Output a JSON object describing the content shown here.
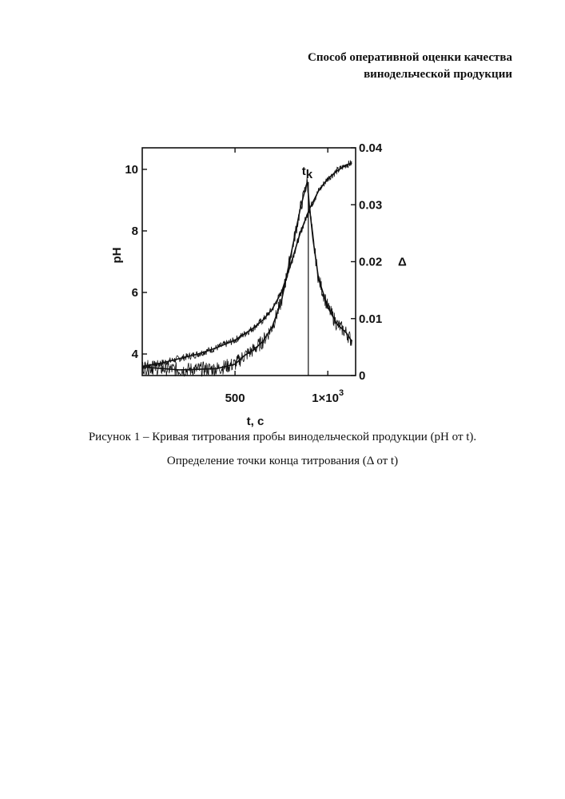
{
  "document": {
    "title_lines": [
      "Способ оперативной оценки качества",
      "винодельческой продукции"
    ],
    "caption_line1": "Рисунок 1 – Кривая титрования пробы винодельческой продукции (pH от t).",
    "caption_line2": "Определение точки конца титрования (Δ от t)"
  },
  "chart_data": {
    "type": "line",
    "xlabel": "t, c",
    "ylabel_left": "pH",
    "ylabel_right": "Δ",
    "xlim": [
      0,
      1150
    ],
    "ylim_left": [
      3.3,
      10.7
    ],
    "ylim_right": [
      0,
      0.04
    ],
    "x_ticks": [
      {
        "value": 500,
        "label": "500"
      },
      {
        "value": 1000,
        "label": "1×10",
        "sup": "3"
      }
    ],
    "y_left_ticks": [
      4,
      6,
      8,
      10
    ],
    "y_right_ticks": [
      "0",
      "0.01",
      "0.02",
      "0.03",
      "0.04"
    ],
    "annotation": {
      "label": "t",
      "sub": "k",
      "x": 895
    },
    "series": [
      {
        "axis": "left",
        "x": [
          0,
          100,
          200,
          300,
          400,
          500,
          600,
          650,
          700,
          750,
          800,
          850,
          900,
          950,
          1000,
          1050,
          1100,
          1130
        ],
        "y": [
          3.6,
          3.7,
          3.85,
          4.0,
          4.2,
          4.45,
          4.85,
          5.1,
          5.45,
          6.0,
          6.9,
          7.9,
          8.7,
          9.3,
          9.7,
          9.95,
          10.15,
          10.2
        ]
      },
      {
        "axis": "right",
        "x": [
          0,
          200,
          400,
          500,
          550,
          600,
          650,
          700,
          750,
          800,
          850,
          880,
          890,
          900,
          920,
          950,
          1000,
          1050,
          1100,
          1130
        ],
        "y": [
          0.0015,
          0.001,
          0.0012,
          0.002,
          0.0035,
          0.0045,
          0.006,
          0.0085,
          0.013,
          0.021,
          0.029,
          0.033,
          0.034,
          0.03,
          0.024,
          0.017,
          0.012,
          0.009,
          0.0075,
          0.006
        ]
      }
    ],
    "grid": false
  }
}
